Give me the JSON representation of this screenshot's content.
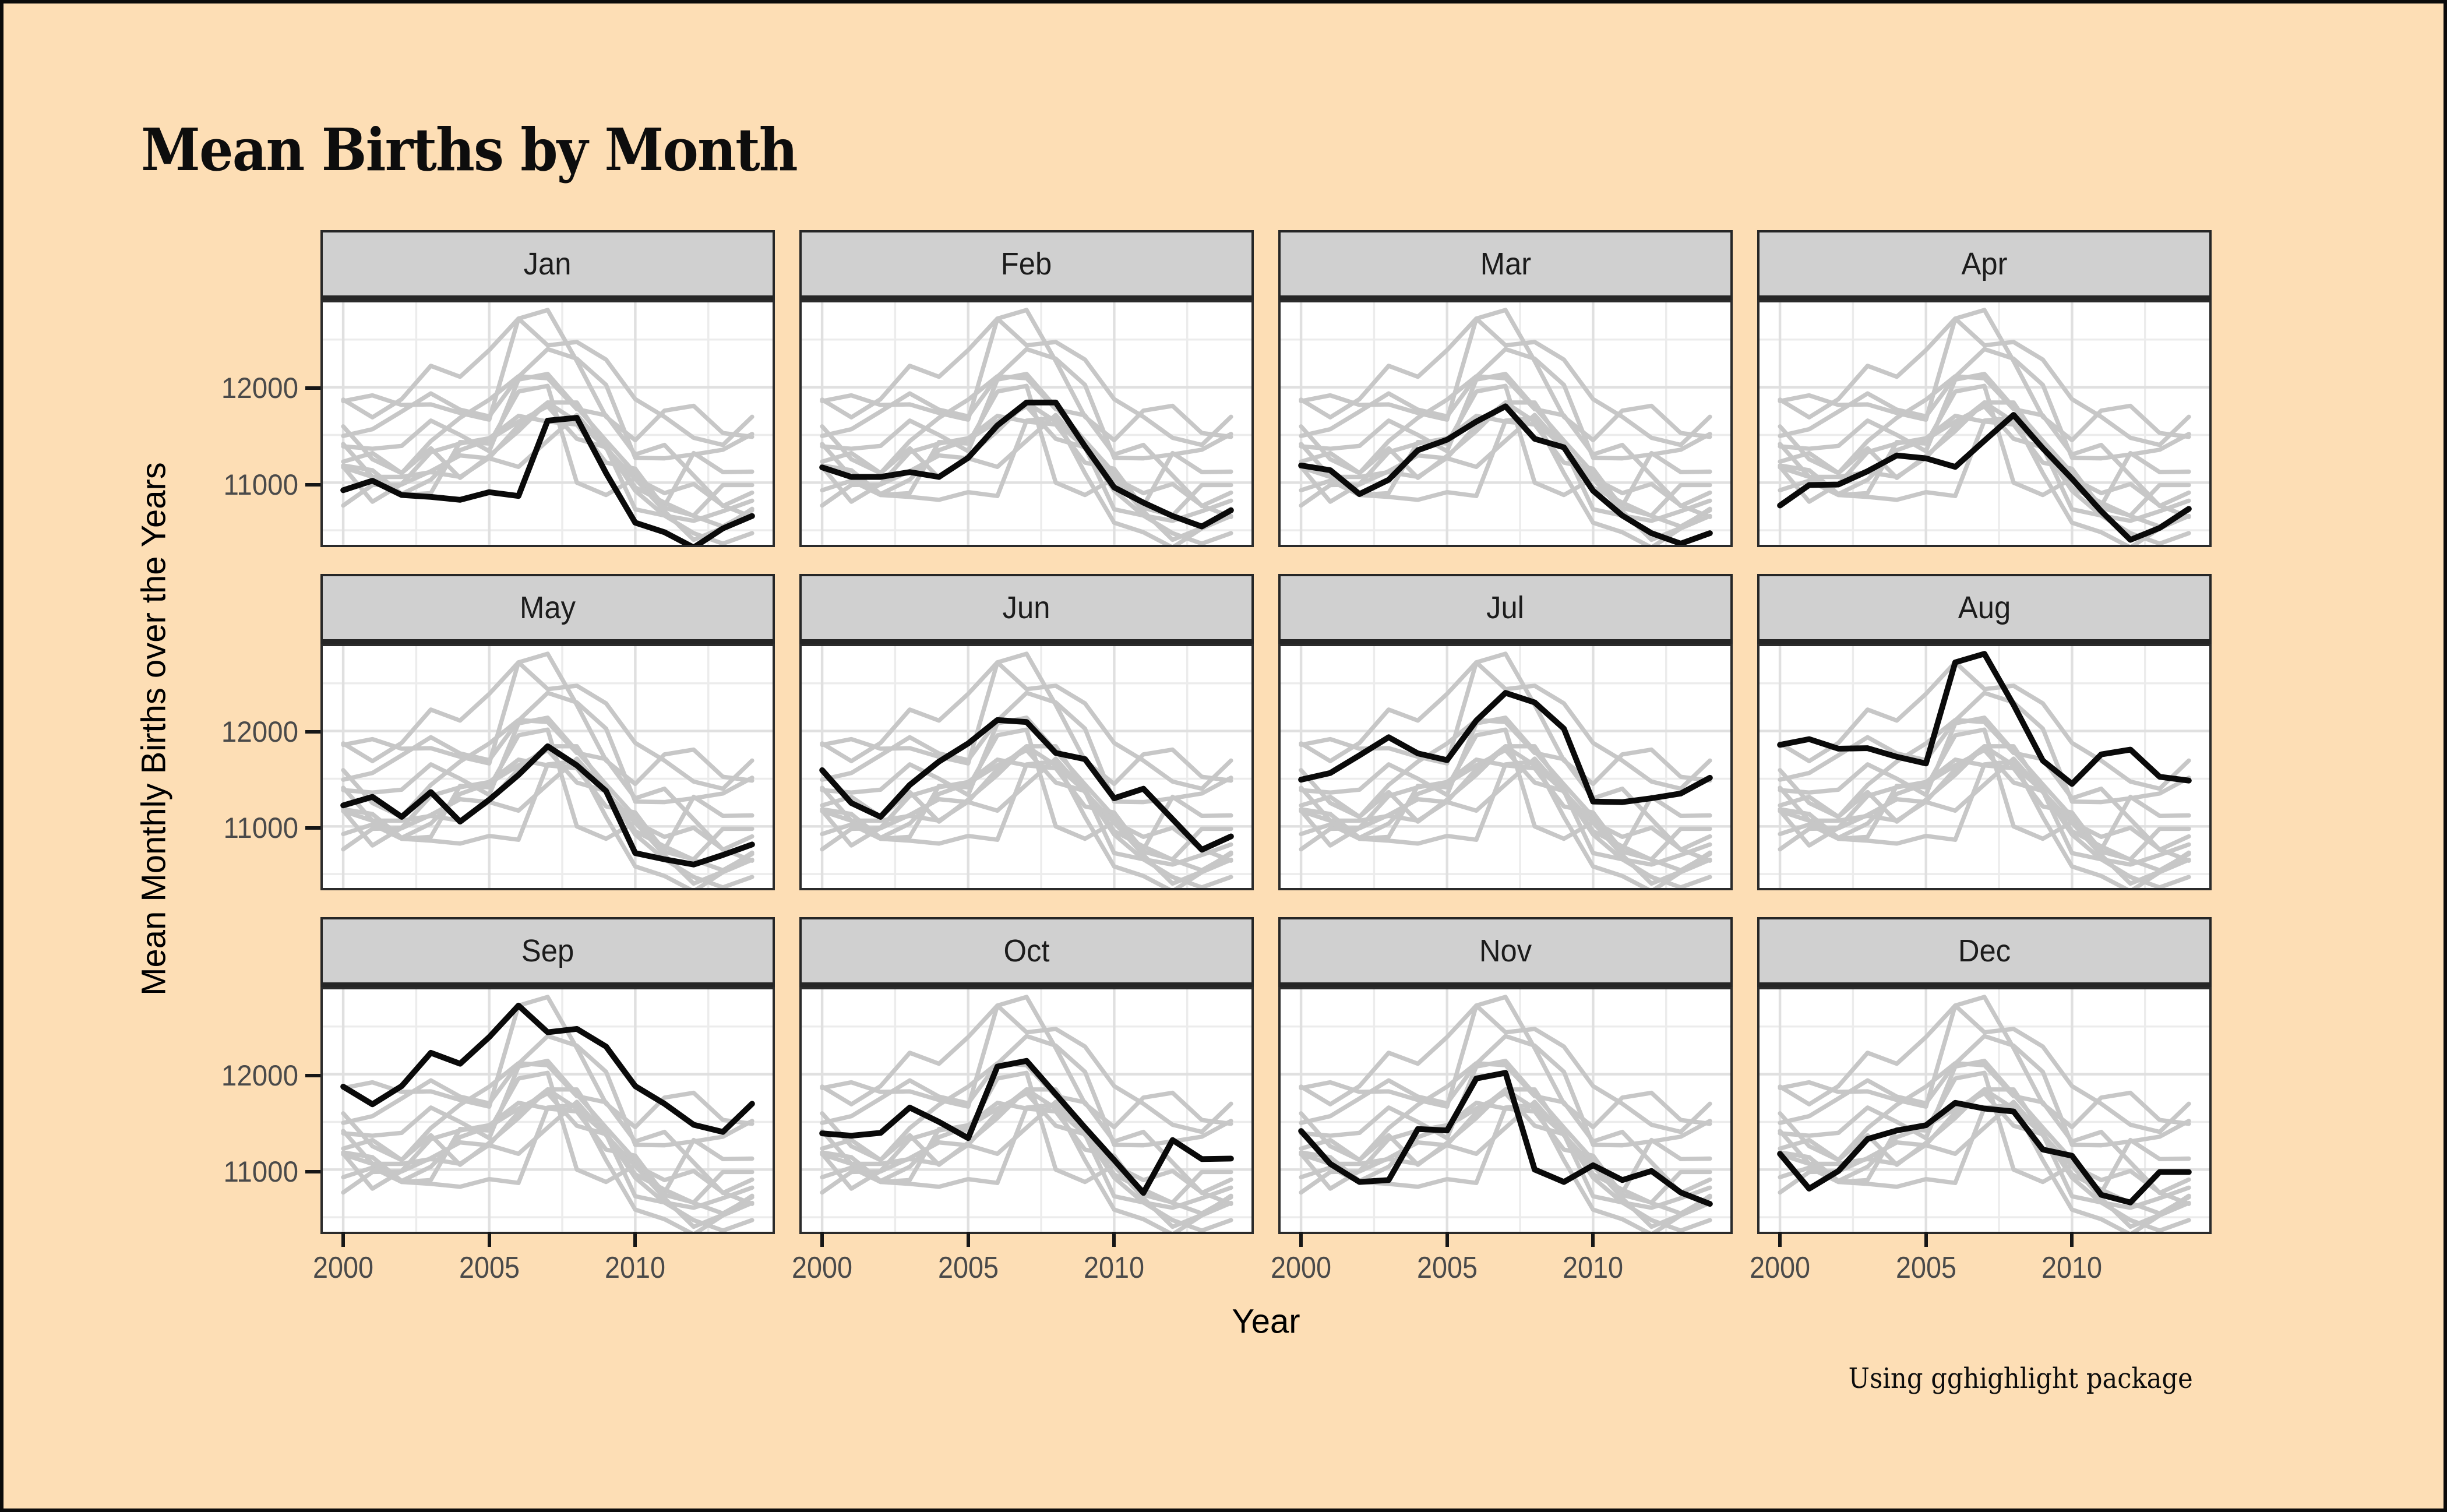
{
  "title": "Mean Births by Month",
  "caption": "Using gghighlight package",
  "axes": {
    "x_title": "Year",
    "y_title": "Mean Monthly Births over the Years",
    "x_tick_labels": [
      "2000",
      "2005",
      "2010"
    ],
    "y_tick_labels": [
      "12000",
      "11000"
    ]
  },
  "chart_data": {
    "type": "line",
    "title": "Mean Births by Month",
    "xlabel": "Year",
    "ylabel": "Mean Monthly Births over the Years",
    "facets": [
      "Jan",
      "Feb",
      "Mar",
      "Apr",
      "May",
      "Jun",
      "Jul",
      "Aug",
      "Sep",
      "Oct",
      "Nov",
      "Dec"
    ],
    "facet_layout": {
      "rows": 3,
      "cols": 4
    },
    "highlight_rule": "in each facet that month's series is black; all 12 series drawn gray underneath",
    "x": [
      2000,
      2001,
      2002,
      2003,
      2004,
      2005,
      2006,
      2007,
      2008,
      2009,
      2010,
      2011,
      2012,
      2013,
      2014
    ],
    "xlim": [
      1999.3,
      2014.7
    ],
    "ylim": [
      10350,
      12890
    ],
    "x_ticks": [
      2000,
      2005,
      2010
    ],
    "y_ticks": [
      11000,
      12000
    ],
    "grid": {
      "major_x": [
        2000,
        2005,
        2010
      ],
      "minor_x": [
        2002.5,
        2007.5,
        2012.5
      ],
      "major_y": [
        11000,
        12000
      ],
      "minor_y": [
        10500,
        11500,
        12500
      ]
    },
    "legend_position": "none",
    "series": [
      {
        "name": "Jan",
        "values": [
          10920,
          11020,
          10870,
          10850,
          10820,
          10900,
          10860,
          11650,
          11680,
          11100,
          10580,
          10480,
          10320,
          10520,
          10650
        ]
      },
      {
        "name": "Feb",
        "values": [
          11160,
          11060,
          11060,
          11110,
          11060,
          11260,
          11600,
          11840,
          11840,
          11380,
          10950,
          10790,
          10650,
          10540,
          10710
        ]
      },
      {
        "name": "Mar",
        "values": [
          11180,
          11130,
          10880,
          11030,
          11340,
          11450,
          11640,
          11800,
          11460,
          11370,
          10915,
          10655,
          10470,
          10360,
          10470
        ]
      },
      {
        "name": "Apr",
        "values": [
          10760,
          10975,
          10980,
          11120,
          11285,
          11255,
          11165,
          11440,
          11710,
          11360,
          11040,
          10700,
          10400,
          10525,
          10725
        ]
      },
      {
        "name": "May",
        "values": [
          11220,
          11310,
          11100,
          11360,
          11050,
          11280,
          11540,
          11840,
          11640,
          11370,
          10720,
          10655,
          10600,
          10700,
          10810
        ]
      },
      {
        "name": "Jun",
        "values": [
          11590,
          11245,
          11100,
          11435,
          11680,
          11870,
          12115,
          12095,
          11770,
          11705,
          11295,
          11395,
          11075,
          10755,
          10895
        ]
      },
      {
        "name": "Jul",
        "values": [
          11490,
          11560,
          11745,
          11935,
          11765,
          11695,
          12110,
          12400,
          12300,
          12025,
          11260,
          11255,
          11295,
          11345,
          11510
        ]
      },
      {
        "name": "Aug",
        "values": [
          11855,
          11915,
          11815,
          11820,
          11730,
          11660,
          12720,
          12810,
          12275,
          11690,
          11445,
          11755,
          11805,
          11520,
          11480
        ]
      },
      {
        "name": "Sep",
        "values": [
          11870,
          11685,
          11875,
          12225,
          12110,
          12390,
          12720,
          12440,
          12475,
          12290,
          11875,
          11690,
          11470,
          11395,
          11690
        ]
      },
      {
        "name": "Oct",
        "values": [
          11380,
          11355,
          11385,
          11650,
          11500,
          11330,
          12080,
          12140,
          11790,
          11440,
          11100,
          10755,
          11310,
          11110,
          11115
        ]
      },
      {
        "name": "Nov",
        "values": [
          11405,
          11060,
          10870,
          10890,
          11425,
          11410,
          11955,
          12015,
          11000,
          10870,
          11045,
          10890,
          10985,
          10760,
          10640
        ]
      },
      {
        "name": "Dec",
        "values": [
          11165,
          10800,
          10985,
          11320,
          11410,
          11465,
          11700,
          11640,
          11610,
          11210,
          11145,
          10735,
          10655,
          10975,
          10975
        ]
      }
    ],
    "colors": {
      "highlight_line": "#0a0a0a",
      "other_lines": "#C7C7C7",
      "panel_bg": "#FFFFFF",
      "strip_bg": "#D0D0D0",
      "strip_border": "#262626",
      "panel_border": "#2b2b2b",
      "grid_major": "#E0E0E0",
      "grid_minor": "#ECECEC",
      "page_bg": "#FDDEB5",
      "tick_label": "#4a4a4a"
    }
  }
}
